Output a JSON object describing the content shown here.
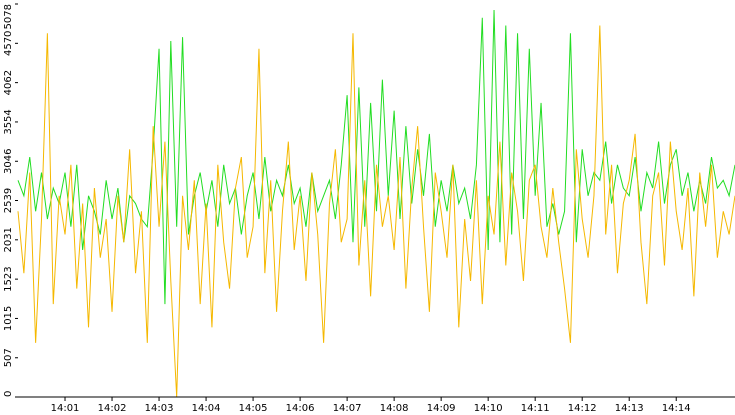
{
  "chart_data": {
    "type": "line",
    "x": [
      0,
      0.125,
      0.25,
      0.375,
      0.5,
      0.625,
      0.75,
      0.875,
      1,
      1.125,
      1.25,
      1.375,
      1.5,
      1.625,
      1.75,
      1.875,
      2,
      2.125,
      2.25,
      2.375,
      2.5,
      2.625,
      2.75,
      2.875,
      3,
      3.125,
      3.25,
      3.375,
      3.5,
      3.625,
      3.75,
      3.875,
      4,
      4.125,
      4.25,
      4.375,
      4.5,
      4.625,
      4.75,
      4.875,
      5,
      5.125,
      5.25,
      5.375,
      5.5,
      5.625,
      5.75,
      5.875,
      6,
      6.125,
      6.25,
      6.375,
      6.5,
      6.625,
      6.75,
      6.875,
      7,
      7.125,
      7.25,
      7.375,
      7.5,
      7.625,
      7.75,
      7.875,
      8,
      8.125,
      8.25,
      8.375,
      8.5,
      8.625,
      8.75,
      8.875,
      9,
      9.125,
      9.25,
      9.375,
      9.5,
      9.625,
      9.75,
      9.875,
      10,
      10.125,
      10.25,
      10.375,
      10.5,
      10.625,
      10.75,
      10.875,
      11,
      11.125,
      11.25,
      11.375,
      11.5,
      11.625,
      11.75,
      11.875,
      12,
      12.125,
      12.25,
      12.375,
      12.5,
      12.625,
      12.75,
      12.875,
      13,
      13.125,
      13.25,
      13.375,
      13.5,
      13.625,
      13.75,
      13.875,
      14,
      14.125,
      14.25,
      14.375,
      14.5,
      14.625,
      14.75,
      14.875,
      15,
      15.125,
      15.25
    ],
    "series": [
      {
        "color": "#22dd22",
        "values": [
          2800,
          2600,
          3100,
          2400,
          2900,
          2300,
          2700,
          2500,
          2900,
          2200,
          3000,
          1900,
          2600,
          2400,
          2100,
          2800,
          2300,
          2700,
          2000,
          2600,
          2500,
          2300,
          2200,
          3200,
          4500,
          1200,
          4600,
          2200,
          4650,
          2100,
          2600,
          2900,
          2400,
          2800,
          2200,
          3000,
          2500,
          2700,
          2100,
          2600,
          2900,
          2300,
          3100,
          2400,
          2800,
          2600,
          3000,
          2500,
          2700,
          2200,
          2900,
          2400,
          2600,
          2800,
          2300,
          3000,
          3900,
          2000,
          4000,
          2200,
          3800,
          2400,
          4100,
          2600,
          3700,
          2300,
          3500,
          2500,
          3200,
          2600,
          3400,
          2200,
          2800,
          2400,
          3000,
          2500,
          2700,
          2300,
          3000,
          4900,
          1900,
          5000,
          2000,
          4800,
          2100,
          4700,
          2300,
          4500,
          2600,
          3800,
          2200,
          2500,
          2100,
          2400,
          4700,
          2000,
          3200,
          2600,
          2900,
          2800,
          3300,
          2500,
          3000,
          2700,
          2600,
          3100,
          2400,
          2900,
          2700,
          3300,
          2500,
          3000,
          3200,
          2600,
          2900,
          2400,
          2800,
          2500,
          3100,
          2700,
          2800,
          2600,
          3000
        ]
      },
      {
        "color": "#f5b800",
        "values": [
          2400,
          1600,
          2900,
          700,
          2300,
          4700,
          1200,
          2600,
          2100,
          3000,
          1400,
          2500,
          900,
          2700,
          1800,
          2300,
          1100,
          2600,
          2000,
          3200,
          1600,
          2400,
          700,
          3500,
          2200,
          3300,
          1500,
          0,
          2600,
          1900,
          2800,
          1200,
          2500,
          900,
          3000,
          2000,
          1400,
          2700,
          3100,
          1800,
          2200,
          4500,
          1600,
          2800,
          1100,
          2400,
          3300,
          1900,
          2600,
          1500,
          2900,
          2100,
          700,
          2500,
          3200,
          2000,
          2300,
          4700,
          1700,
          2800,
          1300,
          3000,
          2200,
          2600,
          1900,
          3100,
          1400,
          2700,
          3500,
          2200,
          1100,
          2900,
          2400,
          1800,
          3000,
          900,
          2300,
          1500,
          2800,
          1200,
          2600,
          2100,
          3300,
          1700,
          2900,
          2400,
          1500,
          2800,
          3000,
          2200,
          1800,
          2700,
          2000,
          1400,
          700,
          3200,
          2300,
          1800,
          2600,
          4800,
          2100,
          3000,
          1600,
          2500,
          2800,
          3400,
          2000,
          1200,
          2600,
          2900,
          1700,
          3300,
          2400,
          1900,
          2700,
          1300,
          2900,
          2200,
          3000,
          1800,
          2400,
          2100,
          2600
        ]
      }
    ],
    "xlim": [
      0,
      15.25
    ],
    "xticks": [
      {
        "value": 1,
        "label": "14:01"
      },
      {
        "value": 2,
        "label": "14:02"
      },
      {
        "value": 3,
        "label": "14:03"
      },
      {
        "value": 4,
        "label": "14:04"
      },
      {
        "value": 5,
        "label": "14:05"
      },
      {
        "value": 6,
        "label": "14:06"
      },
      {
        "value": 7,
        "label": "14:07"
      },
      {
        "value": 8,
        "label": "14:08"
      },
      {
        "value": 9,
        "label": "14:09"
      },
      {
        "value": 10,
        "label": "14:10"
      },
      {
        "value": 11,
        "label": "14:11"
      },
      {
        "value": 12,
        "label": "14:12"
      },
      {
        "value": 13,
        "label": "14:13"
      },
      {
        "value": 14,
        "label": "14:14"
      }
    ],
    "ylim": [
      0,
      5078
    ],
    "yticks": [
      0,
      507,
      1015,
      1523,
      2031,
      2539,
      3046,
      3554,
      4062,
      4570,
      5078
    ]
  }
}
